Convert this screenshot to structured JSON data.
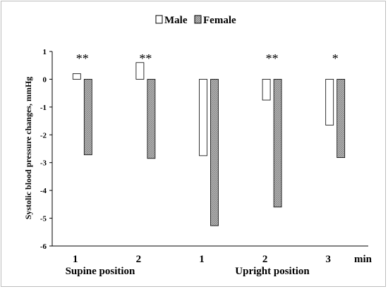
{
  "chart_data": {
    "type": "bar",
    "ylabel": "Systolic blood pressure changes,  mmHg",
    "x_unit_label": "min",
    "ylim": [
      -6,
      1
    ],
    "yticks": [
      1,
      0,
      -1,
      -2,
      -3,
      -4,
      -5,
      -6
    ],
    "categories": [
      "1",
      "2",
      "1",
      "2",
      "3"
    ],
    "groups": [
      {
        "label": "Supine position",
        "categories": [
          "1",
          "2"
        ]
      },
      {
        "label": "Upright position",
        "categories": [
          "1",
          "2",
          "3"
        ]
      }
    ],
    "series": [
      {
        "name": "Male",
        "values": [
          0.2,
          0.6,
          -2.75,
          -0.75,
          -1.65
        ],
        "fill": "#ffffff"
      },
      {
        "name": "Female",
        "values": [
          -2.72,
          -2.85,
          -5.27,
          -4.6,
          -2.82
        ],
        "fill": "#a9a9a9"
      }
    ],
    "significance": [
      "**",
      "**",
      "",
      "**",
      "*"
    ],
    "legend_position": "top-center",
    "grid": false
  }
}
